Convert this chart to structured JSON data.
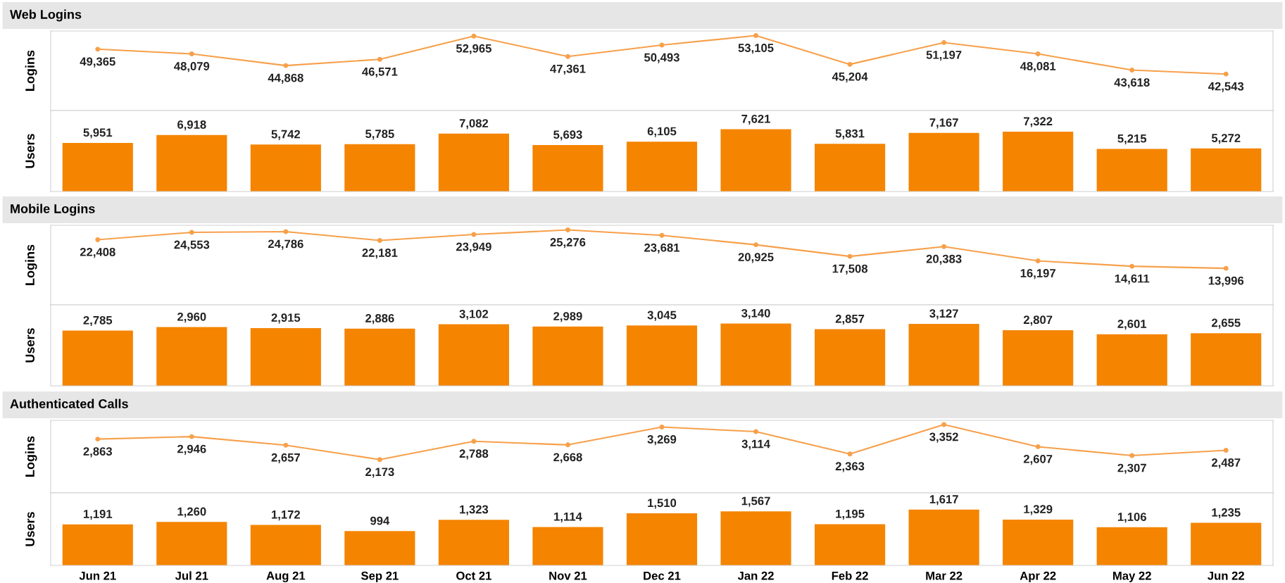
{
  "chart_data": [
    {
      "type": "line",
      "title": "Web Logins",
      "ylabel": "Logins",
      "categories": [
        null,
        null,
        null,
        null,
        null,
        null,
        null,
        null,
        null,
        null,
        null,
        null,
        null
      ],
      "values": [
        49365,
        48079,
        44868,
        46571,
        52965,
        47361,
        50493,
        53105,
        45204,
        51197,
        48081,
        43618,
        42543
      ],
      "value_labels": [
        "49,365",
        "48,079",
        "44,868",
        "46,571",
        "52,965",
        "47,361",
        "50,493",
        "53,105",
        "45,204",
        "51,197",
        "48,081",
        "43,618",
        "42,543"
      ],
      "color": "#f7a04b",
      "marker": "circle",
      "tick_labels": false
    },
    {
      "type": "bar",
      "ylabel": "Users",
      "categories": [
        null,
        null,
        null,
        null,
        null,
        null,
        null,
        null,
        null,
        null,
        null,
        null,
        null
      ],
      "values": [
        5951,
        6918,
        5742,
        5785,
        7082,
        5693,
        6105,
        7621,
        5831,
        7167,
        7322,
        5215,
        5272
      ],
      "value_labels": [
        "5,951",
        "6,918",
        "5,742",
        "5,785",
        "7,082",
        "5,693",
        "6,105",
        "7,621",
        "5,831",
        "7,167",
        "7,322",
        "5,215",
        "5,272"
      ],
      "color": "#f58400",
      "tick_labels": false
    },
    {
      "type": "line",
      "title": "Mobile Logins",
      "ylabel": "Logins",
      "categories": [
        null,
        null,
        null,
        null,
        null,
        null,
        null,
        null,
        null,
        null,
        null,
        null,
        null
      ],
      "values": [
        22408,
        24553,
        24786,
        22181,
        23949,
        25276,
        23681,
        20925,
        17508,
        20383,
        16197,
        14611,
        13996
      ],
      "value_labels": [
        "22,408",
        "24,553",
        "24,786",
        "22,181",
        "23,949",
        "25,276",
        "23,681",
        "20,925",
        "17,508",
        "20,383",
        "16,197",
        "14,611",
        "13,996"
      ],
      "color": "#f7a04b",
      "marker": "circle",
      "tick_labels": false
    },
    {
      "type": "bar",
      "ylabel": "Users",
      "categories": [
        null,
        null,
        null,
        null,
        null,
        null,
        null,
        null,
        null,
        null,
        null,
        null,
        null
      ],
      "values": [
        2785,
        2960,
        2915,
        2886,
        3102,
        2989,
        3045,
        3140,
        2857,
        3127,
        2807,
        2601,
        2655
      ],
      "value_labels": [
        "2,785",
        "2,960",
        "2,915",
        "2,886",
        "3,102",
        "2,989",
        "3,045",
        "3,140",
        "2,857",
        "3,127",
        "2,807",
        "2,601",
        "2,655"
      ],
      "color": "#f58400",
      "tick_labels": false
    },
    {
      "type": "line",
      "title": "Authenticated Calls",
      "ylabel": "Logins",
      "categories": [
        null,
        null,
        null,
        null,
        null,
        null,
        null,
        null,
        null,
        null,
        null,
        null,
        null
      ],
      "values": [
        2863,
        2946,
        2657,
        2173,
        2788,
        2668,
        3269,
        3114,
        2363,
        3352,
        2607,
        2307,
        2487
      ],
      "value_labels": [
        "2,863",
        "2,946",
        "2,657",
        "2,173",
        "2,788",
        "2,668",
        "3,269",
        "3,114",
        "2,363",
        "3,352",
        "2,607",
        "2,307",
        "2,487"
      ],
      "color": "#f7a04b",
      "marker": "circle",
      "tick_labels": false
    },
    {
      "type": "bar",
      "ylabel": "Users",
      "categories": [
        "Jun 21",
        "Jul 21",
        "Aug 21",
        "Sep 21",
        "Oct 21",
        "Nov 21",
        "Dec 21",
        "Jan 22",
        "Feb 22",
        "Mar 22",
        "Apr 22",
        "May 22",
        "Jun 22"
      ],
      "values": [
        1191,
        1260,
        1172,
        994,
        1323,
        1114,
        1510,
        1567,
        1195,
        1617,
        1329,
        1106,
        1235
      ],
      "value_labels": [
        "1,191",
        "1,260",
        "1,172",
        "994",
        "1,323",
        "1,114",
        "1,510",
        "1,567",
        "1,195",
        "1,617",
        "1,329",
        "1,106",
        "1,235"
      ],
      "color": "#f58400",
      "tick_labels": "x"
    }
  ]
}
